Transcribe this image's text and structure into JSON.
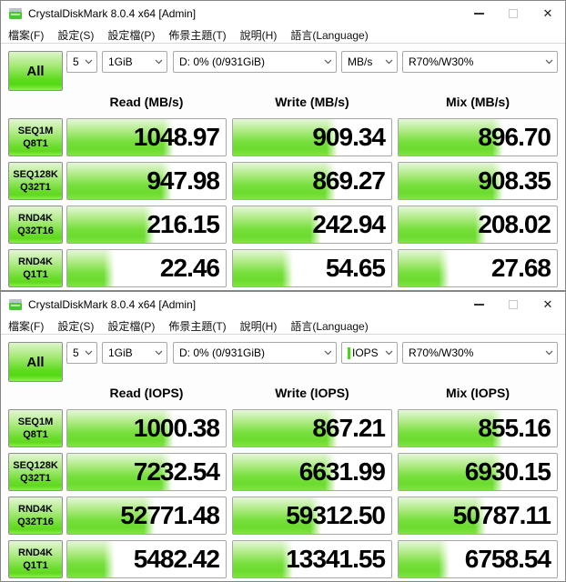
{
  "chrome": {
    "minimize_glyph": "–",
    "close_glyph": "✕"
  },
  "colors": {
    "bar_green": "#6edb35",
    "button_green": "#5fdb1e",
    "border_gray": "#a6a6a6"
  },
  "top": {
    "title": "CrystalDiskMark 8.0.4 x64 [Admin]",
    "menu": [
      "檔案(F)",
      "設定(S)",
      "設定檔(P)",
      "佈景主題(T)",
      "說明(H)",
      "語言(Language)"
    ],
    "all_label": "All",
    "combo_runs": "5",
    "combo_size": "1GiB",
    "combo_drive": "D: 0% (0/931GiB)",
    "combo_unit": "MB/s",
    "combo_mix": "R70%/W30%",
    "headers": [
      "Read (MB/s)",
      "Write (MB/s)",
      "Mix (MB/s)"
    ],
    "rows": [
      {
        "name": "SEQ1M",
        "queue_thread": "Q8T1",
        "values": [
          "1048.97",
          "909.34",
          "896.70"
        ],
        "fills": [
          67,
          66,
          66
        ]
      },
      {
        "name": "SEQ128K",
        "queue_thread": "Q32T1",
        "values": [
          "947.98",
          "869.27",
          "908.35"
        ],
        "fills": [
          66,
          65,
          66
        ]
      },
      {
        "name": "RND4K",
        "queue_thread": "Q32T16",
        "values": [
          "216.15",
          "242.94",
          "208.02"
        ],
        "fills": [
          55,
          56,
          55
        ]
      },
      {
        "name": "RND4K",
        "queue_thread": "Q1T1",
        "values": [
          "22.46",
          "54.65",
          "27.68"
        ],
        "fills": [
          30,
          38,
          32
        ]
      }
    ],
    "footer_value": ""
  },
  "bottom": {
    "title": "CrystalDiskMark 8.0.4 x64 [Admin]",
    "menu": [
      "檔案(F)",
      "設定(S)",
      "設定檔(P)",
      "佈景主題(T)",
      "說明(H)",
      "語言(Language)"
    ],
    "all_label": "All",
    "combo_runs": "5",
    "combo_size": "1GiB",
    "combo_drive": "D: 0% (0/931GiB)",
    "combo_unit": "IOPS",
    "combo_mix": "R70%/W30%",
    "headers": [
      "Read (IOPS)",
      "Write (IOPS)",
      "Mix (IOPS)"
    ],
    "rows": [
      {
        "name": "SEQ1M",
        "queue_thread": "Q8T1",
        "values": [
          "1000.38",
          "867.21",
          "855.16"
        ],
        "fills": [
          67,
          66,
          66
        ]
      },
      {
        "name": "SEQ128K",
        "queue_thread": "Q32T1",
        "values": [
          "7232.54",
          "6631.99",
          "6930.15"
        ],
        "fills": [
          66,
          65,
          66
        ]
      },
      {
        "name": "RND4K",
        "queue_thread": "Q32T16",
        "values": [
          "52771.48",
          "59312.50",
          "50787.11"
        ],
        "fills": [
          55,
          56,
          55
        ]
      },
      {
        "name": "RND4K",
        "queue_thread": "Q1T1",
        "values": [
          "5482.42",
          "13341.55",
          "6758.54"
        ],
        "fills": [
          30,
          38,
          32
        ]
      }
    ],
    "footer_value": ""
  }
}
